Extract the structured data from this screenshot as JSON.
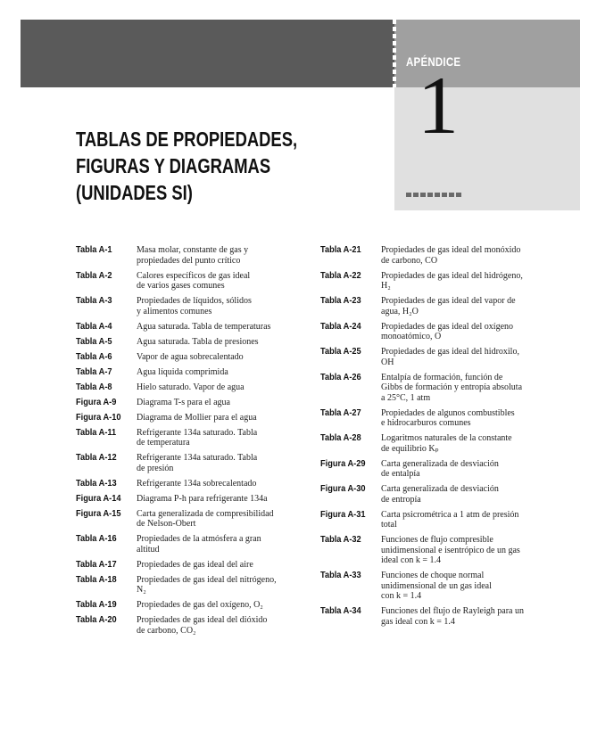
{
  "header": {
    "appendix_label": "APÉNDICE",
    "appendix_number": "1",
    "title": "TABLAS DE PROPIEDADES,\nFIGURAS Y DIAGRAMAS\n(UNIDADES SI)"
  },
  "colors": {
    "band": "#5a5a5a",
    "box_top": "#a0a0a0",
    "box_low": "#e0e0e0"
  },
  "left_entries": [
    {
      "label": "Tabla A-1",
      "desc": "Masa molar, constante de gas y\npropiedades del punto crítico"
    },
    {
      "label": "Tabla A-2",
      "desc": "Calores específicos de gas ideal\nde varios gases comunes"
    },
    {
      "label": "Tabla A-3",
      "desc": "Propiedades de líquidos, sólidos\ny alimentos comunes"
    },
    {
      "label": "Tabla A-4",
      "desc": "Agua saturada. Tabla de temperaturas"
    },
    {
      "label": "Tabla A-5",
      "desc": "Agua saturada. Tabla de presiones"
    },
    {
      "label": "Tabla A-6",
      "desc": "Vapor de agua sobrecalentado"
    },
    {
      "label": "Tabla A-7",
      "desc": "Agua líquida comprimida"
    },
    {
      "label": "Tabla A-8",
      "desc": "Hielo saturado. Vapor de agua"
    },
    {
      "label": "Figura A-9",
      "desc": "Diagrama T-s para el agua"
    },
    {
      "label": "Figura A-10",
      "desc": "Diagrama de Mollier para el agua"
    },
    {
      "label": "Tabla A-11",
      "desc": "Refrigerante 134a saturado. Tabla\nde temperatura"
    },
    {
      "label": "Tabla A-12",
      "desc": "Refrigerante 134a saturado. Tabla\nde presión"
    },
    {
      "label": "Tabla A-13",
      "desc": "Refrigerante 134a sobrecalentado"
    },
    {
      "label": "Figura A-14",
      "desc": "Diagrama P-h para refrigerante 134a"
    },
    {
      "label": "Figura A-15",
      "desc": "Carta generalizada de compresibilidad\nde Nelson-Obert"
    },
    {
      "label": "Tabla A-16",
      "desc": "Propiedades de la atmósfera a gran\naltitud"
    },
    {
      "label": "Tabla A-17",
      "desc": "Propiedades de gas ideal del aire"
    },
    {
      "label": "Tabla A-18",
      "desc": "Propiedades de gas ideal del nitrógeno,\nN₂"
    },
    {
      "label": "Tabla A-19",
      "desc": "Propiedades de gas del oxígeno, O₂"
    },
    {
      "label": "Tabla A-20",
      "desc": "Propiedades de gas ideal del dióxido\nde carbono, CO₂"
    }
  ],
  "right_entries": [
    {
      "label": "Tabla A-21",
      "desc": "Propiedades de gas ideal del monóxido\nde carbono, CO"
    },
    {
      "label": "Tabla A-22",
      "desc": "Propiedades de gas ideal del hidrógeno,\nH₂"
    },
    {
      "label": "Tabla A-23",
      "desc": "Propiedades de gas ideal del vapor de\nagua, H₂O"
    },
    {
      "label": "Tabla A-24",
      "desc": "Propiedades de gas ideal del oxígeno\nmonoatómico, O"
    },
    {
      "label": "Tabla A-25",
      "desc": "Propiedades de gas ideal del hidroxilo,\nOH"
    },
    {
      "label": "Tabla A-26",
      "desc": "Entalpía de formación, función de\nGibbs de formación y entropía absoluta\na 25°C, 1 atm"
    },
    {
      "label": "Tabla A-27",
      "desc": "Propiedades de algunos combustibles\ne hidrocarburos comunes"
    },
    {
      "label": "Tabla A-28",
      "desc": "Logaritmos naturales de la constante\nde equilibrio Kₚ"
    },
    {
      "label": "Figura A-29",
      "desc": "Carta generalizada de desviación\nde entalpía"
    },
    {
      "label": "Figura A-30",
      "desc": "Carta generalizada de desviación\nde entropía"
    },
    {
      "label": "Figura A-31",
      "desc": "Carta psicrométrica a 1 atm de presión\ntotal"
    },
    {
      "label": "Tabla A-32",
      "desc": "Funciones de flujo compresible\nunidimensional e isentrópico de un gas\nideal con k = 1.4"
    },
    {
      "label": "Tabla A-33",
      "desc": "Funciones de choque normal\nunidimensional de un gas ideal\ncon k = 1.4"
    },
    {
      "label": "Tabla A-34",
      "desc": "Funciones del flujo de Rayleigh para un\ngas ideal con k = 1.4"
    }
  ]
}
